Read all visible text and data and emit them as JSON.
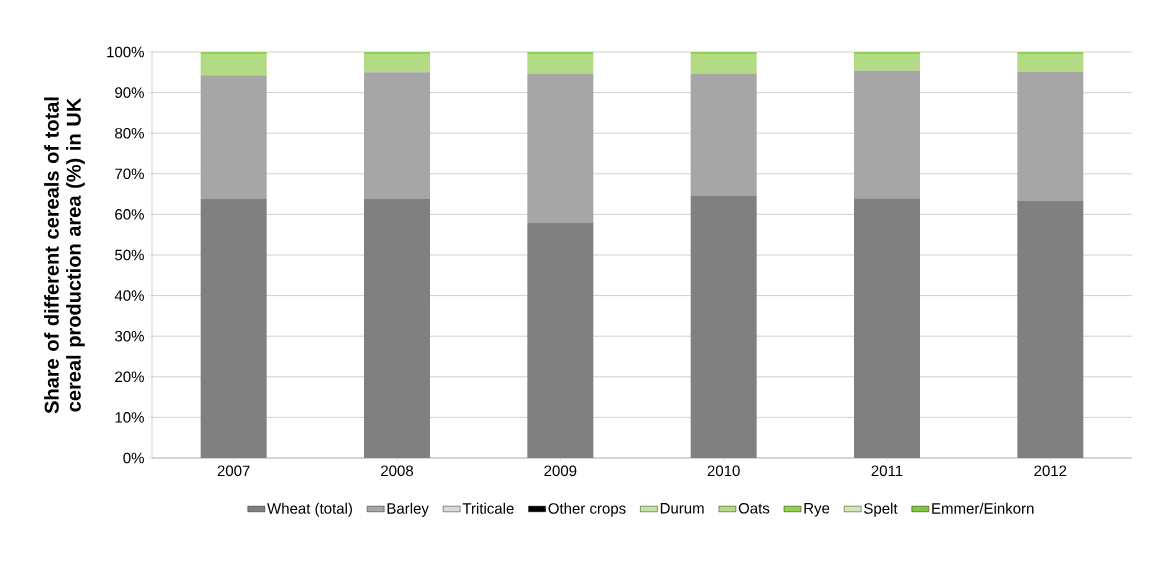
{
  "chart_data": {
    "type": "bar",
    "stacked": true,
    "ylabel": "Share of different cereals of total cereal production area (%) in UK",
    "categories": [
      "2007",
      "2008",
      "2009",
      "2010",
      "2011",
      "2012"
    ],
    "series": [
      {
        "name": "Wheat (total)",
        "color": "#808080",
        "values": [
          63.8,
          63.8,
          57.9,
          64.5,
          64.0,
          63.3
        ]
      },
      {
        "name": "Barley",
        "color": "#a6a6a6",
        "values": [
          30.5,
          31.2,
          36.8,
          30.2,
          31.4,
          31.8
        ]
      },
      {
        "name": "Triticale",
        "color": "#d9d9d9",
        "values": [
          0,
          0,
          0,
          0,
          0,
          0
        ]
      },
      {
        "name": "Other crops",
        "color": "#000000",
        "values": [
          0,
          0,
          0,
          0,
          0,
          0
        ]
      },
      {
        "name": "Durum",
        "color": "#c4e3a0",
        "values": [
          0,
          0,
          0,
          0,
          0,
          0
        ]
      },
      {
        "name": "Oats",
        "color": "#b3da84",
        "values": [
          5.0,
          4.3,
          4.6,
          4.6,
          3.9,
          4.2
        ]
      },
      {
        "name": "Rye",
        "color": "#92d050",
        "values": [
          0.7,
          0.7,
          0.7,
          0.7,
          0.7,
          0.7
        ]
      },
      {
        "name": "Spelt",
        "color": "#d0e8b4",
        "values": [
          0,
          0,
          0,
          0,
          0,
          0
        ]
      },
      {
        "name": "Emmer/Einkorn",
        "color": "#7fc63c",
        "values": [
          0,
          0,
          0,
          0,
          0,
          0
        ]
      }
    ],
    "ylim": [
      0,
      100
    ],
    "yticks": [
      {
        "value": 0,
        "label": "0%"
      },
      {
        "value": 10,
        "label": "10%"
      },
      {
        "value": 20,
        "label": "20%"
      },
      {
        "value": 30,
        "label": "30%"
      },
      {
        "value": 40,
        "label": "40%"
      },
      {
        "value": 50,
        "label": "50%"
      },
      {
        "value": 60,
        "label": "60%"
      },
      {
        "value": 70,
        "label": "70%"
      },
      {
        "value": 80,
        "label": "80%"
      },
      {
        "value": 90,
        "label": "90%"
      },
      {
        "value": 100,
        "label": "100%"
      }
    ],
    "grid": "y",
    "legend": "bottom"
  }
}
